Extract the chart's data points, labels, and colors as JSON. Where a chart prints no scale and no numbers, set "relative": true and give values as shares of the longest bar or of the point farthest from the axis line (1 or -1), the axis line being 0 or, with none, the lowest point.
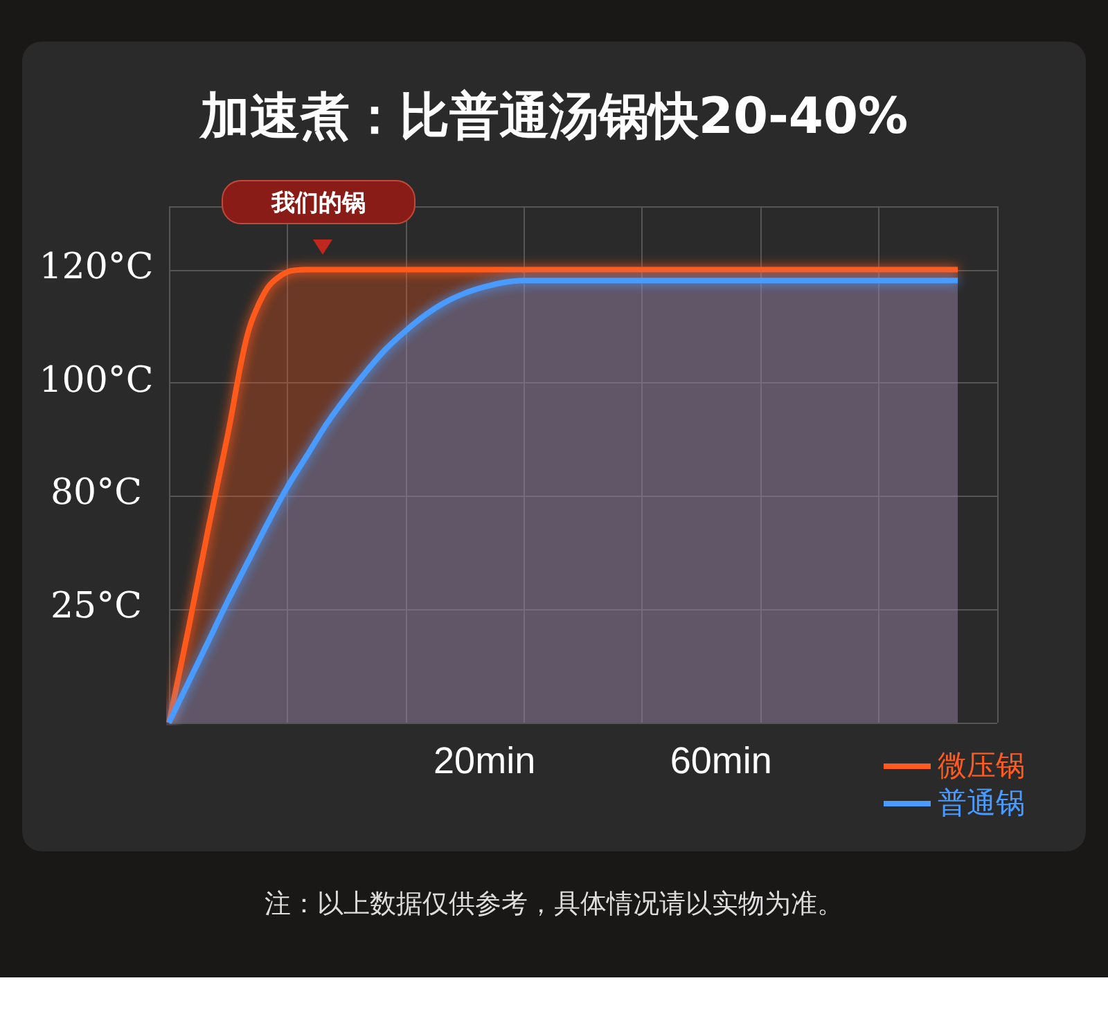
{
  "chart_data": {
    "type": "area",
    "title": "加速煮：比普通汤锅快20-40%",
    "relative": true,
    "categories": [
      null,
      null,
      null,
      null,
      null,
      null,
      null,
      null,
      null,
      null,
      null,
      null,
      null,
      null,
      null,
      null,
      "20min",
      null,
      null,
      null,
      null,
      null,
      null,
      null,
      null,
      null,
      null,
      null,
      "60min",
      null,
      null,
      null,
      null,
      null,
      null,
      null,
      null,
      null,
      null,
      null,
      null,
      null,
      null
    ],
    "series": [
      {
        "name": "微压锅",
        "color": "#ff5a1f",
        "values": [
          0,
          0.21,
          0.43,
          0.64,
          0.86,
          0.96,
          0.995,
          1,
          1,
          1,
          1,
          1,
          1,
          1,
          1,
          1,
          1,
          1,
          1,
          1,
          1,
          1,
          1,
          1,
          1,
          1,
          1,
          1,
          1,
          1,
          1,
          1,
          1,
          1,
          1,
          1,
          1,
          1,
          1,
          1,
          1,
          null,
          null
        ]
      },
      {
        "name": "普通锅",
        "color": "#4a9bff",
        "values": [
          0,
          0.09,
          0.18,
          0.27,
          0.355,
          0.44,
          0.52,
          0.59,
          0.66,
          0.72,
          0.775,
          0.825,
          0.865,
          0.9,
          0.928,
          0.948,
          0.962,
          0.972,
          0.976,
          0.976,
          0.976,
          0.976,
          0.976,
          0.976,
          0.976,
          0.976,
          0.976,
          0.976,
          0.976,
          0.976,
          0.976,
          0.976,
          0.976,
          0.976,
          0.976,
          0.976,
          0.976,
          0.976,
          0.976,
          0.976,
          0.976,
          null,
          null
        ]
      }
    ],
    "annotations": [
      "120°C",
      "100°C",
      "80°C",
      "25°C",
      "我们的锅",
      "注：以上数据仅供参考，具体情况请以实物为准。"
    ],
    "grid": true,
    "legend": "bottom right",
    "marker": "none",
    "line_style": "solid"
  }
}
